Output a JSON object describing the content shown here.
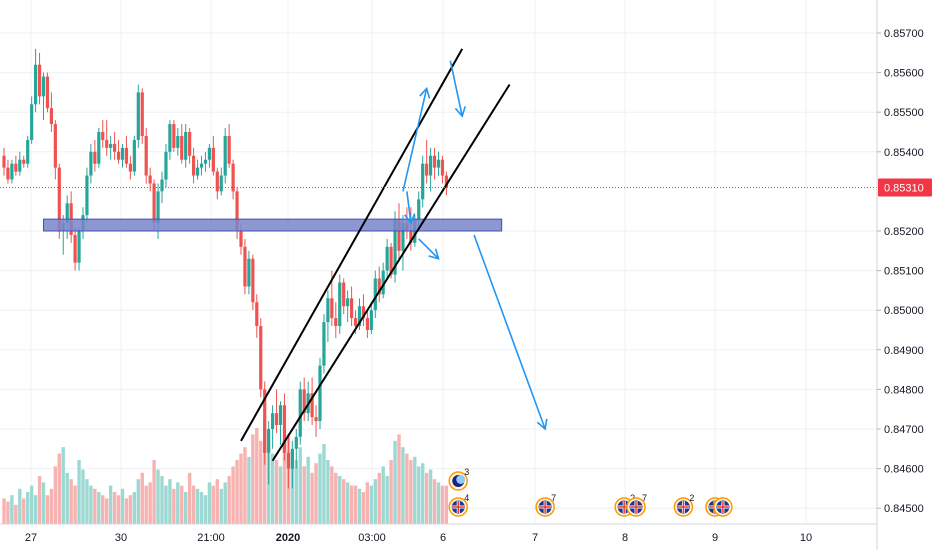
{
  "chart_data": {
    "type": "candlestick",
    "price_axis": {
      "ticks": [
        "0.85700",
        "0.85600",
        "0.85500",
        "0.85400",
        "0.85200",
        "0.85100",
        "0.85000",
        "0.84900",
        "0.84800",
        "0.84700",
        "0.84600",
        "0.84500"
      ],
      "tick_values": [
        0.857,
        0.856,
        0.855,
        0.854,
        0.852,
        0.851,
        0.85,
        0.849,
        0.848,
        0.847,
        0.846,
        0.845
      ],
      "range": [
        0.8447,
        0.8574
      ]
    },
    "time_axis": {
      "labels": [
        "27",
        "30",
        "21:00",
        "2020",
        "03:00",
        "6",
        "7",
        "8",
        "9",
        "10"
      ],
      "bold_label": "2020",
      "range_bars": [
        0,
        220
      ]
    },
    "current_price": {
      "value": 0.8531,
      "label": "0.85310",
      "color": "#f23645"
    },
    "colors": {
      "up": "#26a69a",
      "down": "#ef5350",
      "vol_up": "#9ed8d2",
      "vol_down": "#f6b3b1",
      "grid": "#eef0f3",
      "annotation": "#000000",
      "arrow": "#2196f3",
      "zone_fill": "#7986cb",
      "zone_border": "#3f51b5"
    },
    "zone": {
      "low": 0.852,
      "high": 0.8523,
      "from_bar": 10,
      "to_bar": 126
    },
    "channel": [
      {
        "from": [
          60,
          0.8467
        ],
        "to": [
          116,
          0.8566
        ]
      },
      {
        "from": [
          68,
          0.8462
        ],
        "to": [
          128,
          0.8557
        ]
      }
    ],
    "arrows": [
      {
        "from": [
          101,
          0.853
        ],
        "to": [
          107,
          0.8556
        ]
      },
      {
        "from": [
          113,
          0.8563
        ],
        "to": [
          116,
          0.8549
        ]
      },
      {
        "from": [
          102,
          0.853
        ],
        "to": [
          103,
          0.8522
        ]
      },
      {
        "from": [
          105,
          0.8518
        ],
        "to": [
          110,
          0.8513
        ]
      },
      {
        "from": [
          119,
          0.8519
        ],
        "to": [
          137,
          0.847
        ]
      }
    ],
    "events": [
      {
        "bar": 115,
        "row": 0,
        "count": "3",
        "kind": "moon"
      },
      {
        "bar": 115,
        "row": 1,
        "count": "4",
        "kind": "flag"
      },
      {
        "bar": 137,
        "row": 1,
        "count": "7",
        "kind": "flag"
      },
      {
        "bar": 157,
        "row": 1,
        "count": "2",
        "kind": "flag"
      },
      {
        "bar": 160,
        "row": 1,
        "count": "7",
        "kind": "flag"
      },
      {
        "bar": 172,
        "row": 1,
        "count": "2",
        "kind": "flag"
      },
      {
        "bar": 180,
        "row": 1,
        "count": "",
        "kind": "flag"
      },
      {
        "bar": 182,
        "row": 1,
        "count": "",
        "kind": "flag"
      }
    ],
    "candles": [
      [
        0.8539,
        0.8541,
        0.8534,
        0.8536
      ],
      [
        0.8536,
        0.8538,
        0.8532,
        0.8533
      ],
      [
        0.8533,
        0.8538,
        0.8532,
        0.8537
      ],
      [
        0.8537,
        0.8539,
        0.8534,
        0.8535
      ],
      [
        0.8535,
        0.854,
        0.8534,
        0.8538
      ],
      [
        0.8538,
        0.8539,
        0.8536,
        0.8537
      ],
      [
        0.8537,
        0.8544,
        0.8536,
        0.8543
      ],
      [
        0.8543,
        0.8554,
        0.8542,
        0.8552
      ],
      [
        0.8552,
        0.8566,
        0.855,
        0.8562
      ],
      [
        0.8562,
        0.8565,
        0.8552,
        0.8554
      ],
      [
        0.8554,
        0.856,
        0.8548,
        0.8559
      ],
      [
        0.8559,
        0.856,
        0.855,
        0.8551
      ],
      [
        0.8551,
        0.8555,
        0.8545,
        0.8547
      ],
      [
        0.8547,
        0.8548,
        0.8533,
        0.8536
      ],
      [
        0.8536,
        0.8537,
        0.8518,
        0.852
      ],
      [
        0.852,
        0.8524,
        0.8514,
        0.8522
      ],
      [
        0.8522,
        0.8529,
        0.8518,
        0.8527
      ],
      [
        0.8527,
        0.853,
        0.8517,
        0.8519
      ],
      [
        0.8519,
        0.8521,
        0.851,
        0.8512
      ],
      [
        0.8512,
        0.8521,
        0.851,
        0.852
      ],
      [
        0.852,
        0.8526,
        0.8518,
        0.8524
      ],
      [
        0.8524,
        0.8536,
        0.8522,
        0.8534
      ],
      [
        0.8534,
        0.8542,
        0.8532,
        0.854
      ],
      [
        0.854,
        0.8543,
        0.8535,
        0.8537
      ],
      [
        0.8537,
        0.8546,
        0.8536,
        0.8545
      ],
      [
        0.8545,
        0.8548,
        0.8541,
        0.8543
      ],
      [
        0.8543,
        0.8548,
        0.8539,
        0.8541
      ],
      [
        0.8541,
        0.8544,
        0.8538,
        0.8542
      ],
      [
        0.8542,
        0.8545,
        0.8538,
        0.854
      ],
      [
        0.854,
        0.8543,
        0.8537,
        0.8538
      ],
      [
        0.8538,
        0.8542,
        0.8536,
        0.8541
      ],
      [
        0.8541,
        0.8544,
        0.8536,
        0.8537
      ],
      [
        0.8537,
        0.8539,
        0.8533,
        0.8535
      ],
      [
        0.8535,
        0.8544,
        0.8534,
        0.8543
      ],
      [
        0.8543,
        0.8557,
        0.8541,
        0.8555
      ],
      [
        0.8555,
        0.8556,
        0.8542,
        0.8544
      ],
      [
        0.8544,
        0.8546,
        0.8532,
        0.8534
      ],
      [
        0.8534,
        0.8536,
        0.853,
        0.8532
      ],
      [
        0.8532,
        0.8533,
        0.852,
        0.8522
      ],
      [
        0.8522,
        0.8532,
        0.8518,
        0.853
      ],
      [
        0.853,
        0.8535,
        0.8527,
        0.8533
      ],
      [
        0.8533,
        0.8542,
        0.8531,
        0.854
      ],
      [
        0.854,
        0.8548,
        0.8538,
        0.8547
      ],
      [
        0.8547,
        0.8548,
        0.854,
        0.8541
      ],
      [
        0.8541,
        0.8546,
        0.8539,
        0.8544
      ],
      [
        0.8544,
        0.8547,
        0.8537,
        0.8538
      ],
      [
        0.8538,
        0.8547,
        0.8536,
        0.8545
      ],
      [
        0.8545,
        0.8546,
        0.8537,
        0.8539
      ],
      [
        0.8539,
        0.8541,
        0.8532,
        0.8534
      ],
      [
        0.8534,
        0.8538,
        0.8533,
        0.8536
      ],
      [
        0.8536,
        0.8539,
        0.8534,
        0.8537
      ],
      [
        0.8537,
        0.854,
        0.8535,
        0.8538
      ],
      [
        0.8538,
        0.8542,
        0.8536,
        0.8541
      ],
      [
        0.8541,
        0.8544,
        0.8534,
        0.8535
      ],
      [
        0.8535,
        0.8536,
        0.8528,
        0.853
      ],
      [
        0.853,
        0.8536,
        0.8529,
        0.8534
      ],
      [
        0.8534,
        0.8546,
        0.8532,
        0.8544
      ],
      [
        0.8544,
        0.8547,
        0.8536,
        0.8537
      ],
      [
        0.8537,
        0.8538,
        0.8528,
        0.853
      ],
      [
        0.853,
        0.8531,
        0.8518,
        0.852
      ],
      [
        0.852,
        0.8522,
        0.8514,
        0.8516
      ],
      [
        0.8516,
        0.8518,
        0.8504,
        0.8506
      ],
      [
        0.8506,
        0.8515,
        0.8504,
        0.8513
      ],
      [
        0.8513,
        0.8514,
        0.85,
        0.8502
      ],
      [
        0.8502,
        0.8504,
        0.8493,
        0.8496
      ],
      [
        0.8496,
        0.8498,
        0.8478,
        0.848
      ],
      [
        0.848,
        0.8482,
        0.8461,
        0.8464
      ],
      [
        0.8464,
        0.8472,
        0.8456,
        0.847
      ],
      [
        0.847,
        0.8476,
        0.8465,
        0.8474
      ],
      [
        0.8474,
        0.848,
        0.8469,
        0.8471
      ],
      [
        0.8471,
        0.8477,
        0.8466,
        0.8476
      ],
      [
        0.8476,
        0.8479,
        0.8462,
        0.8464
      ],
      [
        0.8464,
        0.8468,
        0.8455,
        0.846
      ],
      [
        0.846,
        0.8467,
        0.8455,
        0.8465
      ],
      [
        0.8465,
        0.847,
        0.846,
        0.8468
      ],
      [
        0.8468,
        0.8482,
        0.8466,
        0.848
      ],
      [
        0.848,
        0.8483,
        0.8472,
        0.8474
      ],
      [
        0.8474,
        0.8482,
        0.8472,
        0.8479
      ],
      [
        0.8479,
        0.8483,
        0.8471,
        0.8473
      ],
      [
        0.8473,
        0.8476,
        0.8468,
        0.8472
      ],
      [
        0.8472,
        0.8488,
        0.847,
        0.8486
      ],
      [
        0.8486,
        0.8499,
        0.8484,
        0.8497
      ],
      [
        0.8497,
        0.8505,
        0.8492,
        0.8503
      ],
      [
        0.8503,
        0.851,
        0.8496,
        0.8498
      ],
      [
        0.8498,
        0.8502,
        0.8493,
        0.8496
      ],
      [
        0.8496,
        0.8509,
        0.8494,
        0.8507
      ],
      [
        0.8507,
        0.8508,
        0.8499,
        0.8501
      ],
      [
        0.8501,
        0.8505,
        0.8497,
        0.8503
      ],
      [
        0.8503,
        0.8506,
        0.8496,
        0.8498
      ],
      [
        0.8498,
        0.85,
        0.8494,
        0.8496
      ],
      [
        0.8496,
        0.8503,
        0.8495,
        0.8501
      ],
      [
        0.8501,
        0.8504,
        0.8496,
        0.8498
      ],
      [
        0.8498,
        0.85,
        0.8493,
        0.8495
      ],
      [
        0.8495,
        0.8502,
        0.8494,
        0.85
      ],
      [
        0.85,
        0.851,
        0.8498,
        0.8508
      ],
      [
        0.8508,
        0.8511,
        0.8502,
        0.8504
      ],
      [
        0.8504,
        0.8512,
        0.8503,
        0.851
      ],
      [
        0.851,
        0.8518,
        0.8508,
        0.8516
      ],
      [
        0.8516,
        0.8517,
        0.8508,
        0.8509
      ],
      [
        0.8509,
        0.8525,
        0.8507,
        0.8523
      ],
      [
        0.8523,
        0.8527,
        0.8513,
        0.8515
      ],
      [
        0.8515,
        0.8524,
        0.851,
        0.8522
      ],
      [
        0.8522,
        0.8526,
        0.8518,
        0.852
      ],
      [
        0.852,
        0.8526,
        0.8515,
        0.8517
      ],
      [
        0.8517,
        0.8524,
        0.8516,
        0.8523
      ],
      [
        0.8523,
        0.853,
        0.852,
        0.8528
      ],
      [
        0.8528,
        0.8539,
        0.8526,
        0.8537
      ],
      [
        0.8537,
        0.8543,
        0.8532,
        0.8534
      ],
      [
        0.8534,
        0.8541,
        0.853,
        0.8539
      ],
      [
        0.8539,
        0.8541,
        0.8533,
        0.8536
      ],
      [
        0.8536,
        0.854,
        0.8534,
        0.8538
      ],
      [
        0.8538,
        0.8539,
        0.8532,
        0.8534
      ],
      [
        0.8534,
        0.8535,
        0.8529,
        0.8531
      ]
    ],
    "volumes": [
      8,
      7,
      9,
      6,
      11,
      8,
      10,
      12,
      9,
      15,
      13,
      9,
      11,
      18,
      22,
      24,
      16,
      14,
      12,
      20,
      17,
      14,
      12,
      11,
      10,
      9,
      8,
      12,
      10,
      9,
      11,
      8,
      9,
      10,
      14,
      16,
      12,
      13,
      20,
      17,
      15,
      12,
      14,
      11,
      13,
      12,
      10,
      16,
      12,
      11,
      10,
      9,
      13,
      12,
      14,
      11,
      13,
      15,
      18,
      20,
      22,
      24,
      21,
      28,
      30,
      26,
      32,
      24,
      22,
      20,
      18,
      26,
      28,
      22,
      20,
      24,
      18,
      21,
      16,
      19,
      22,
      25,
      20,
      18,
      16,
      15,
      14,
      13,
      12,
      12,
      11,
      10,
      13,
      12,
      14,
      16,
      18,
      15,
      20,
      26,
      28,
      24,
      22,
      20,
      21,
      18,
      19,
      16,
      17,
      14,
      13,
      12,
      12
    ],
    "vol_bar_offset": 0
  }
}
